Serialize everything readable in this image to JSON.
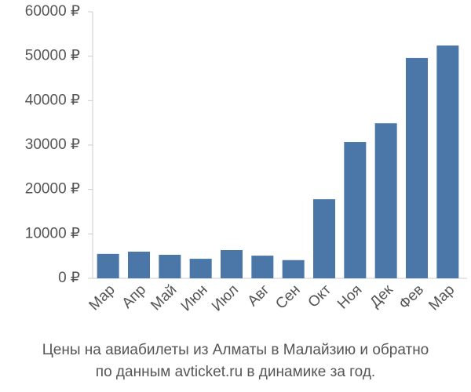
{
  "chart_data": {
    "type": "bar",
    "title": [
      "Цены на авиабилеты из Алматы в Малайзию и обратно",
      "по данным avticket.ru в динамике за год."
    ],
    "categories": [
      "Мар",
      "Апр",
      "Май",
      "Июн",
      "Июл",
      "Авг",
      "Сен",
      "Окт",
      "Ноя",
      "Дек",
      "Фев",
      "Мар"
    ],
    "values": [
      5500,
      6000,
      5300,
      4400,
      6350,
      5100,
      4100,
      17800,
      30700,
      34900,
      49600,
      52400
    ],
    "color": "#4a76a8",
    "ylim": [
      0,
      60000
    ],
    "yticks": [
      {
        "value": 0,
        "label": "0 ₽"
      },
      {
        "value": 10000,
        "label": "10000 ₽"
      },
      {
        "value": 20000,
        "label": "20000 ₽"
      },
      {
        "value": 30000,
        "label": "30000 ₽"
      },
      {
        "value": 40000,
        "label": "40000 ₽"
      },
      {
        "value": 50000,
        "label": "50000 ₽"
      },
      {
        "value": 60000,
        "label": "60000 ₽"
      }
    ],
    "grid": false
  }
}
